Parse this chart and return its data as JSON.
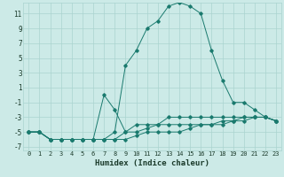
{
  "xlabel": "Humidex (Indice chaleur)",
  "background_color": "#cceae7",
  "grid_color": "#aad4d0",
  "line_color": "#1a7a6e",
  "xlim": [
    -0.5,
    23.5
  ],
  "ylim": [
    -7.5,
    12.5
  ],
  "yticks": [
    -7,
    -5,
    -3,
    -1,
    1,
    3,
    5,
    7,
    9,
    11
  ],
  "xticks": [
    0,
    1,
    2,
    3,
    4,
    5,
    6,
    7,
    8,
    9,
    10,
    11,
    12,
    13,
    14,
    15,
    16,
    17,
    18,
    19,
    20,
    21,
    22,
    23
  ],
  "series": [
    {
      "x": [
        0,
        1,
        2,
        3,
        4,
        5,
        6,
        7,
        8,
        9,
        10,
        11,
        12,
        13,
        14,
        15,
        16,
        17,
        18,
        19,
        20,
        21,
        22,
        23
      ],
      "y": [
        -5,
        -5,
        -6,
        -6,
        -6,
        -6,
        -6,
        -6,
        -5,
        4,
        6,
        9,
        10,
        12,
        12.5,
        12,
        11,
        6,
        2,
        -1,
        -1,
        -2,
        -3,
        -3.5
      ]
    },
    {
      "x": [
        0,
        1,
        2,
        3,
        4,
        5,
        6,
        7,
        8,
        9,
        10,
        11,
        12,
        13,
        14,
        15,
        16,
        17,
        18,
        19,
        20,
        21,
        22,
        23
      ],
      "y": [
        -5,
        -5,
        -6,
        -6,
        -6,
        -6,
        -6,
        0,
        -2,
        -5,
        -4,
        -4,
        -4,
        -3,
        -3,
        -3,
        -3,
        -3,
        -3,
        -3,
        -3,
        -3,
        -3,
        -3.5
      ]
    },
    {
      "x": [
        0,
        1,
        2,
        3,
        4,
        5,
        6,
        7,
        8,
        9,
        10,
        11,
        12,
        13,
        14,
        15,
        16,
        17,
        18,
        19,
        20,
        21,
        22,
        23
      ],
      "y": [
        -5,
        -5,
        -6,
        -6,
        -6,
        -6,
        -6,
        -6,
        -6,
        -5,
        -5,
        -4.5,
        -4,
        -4,
        -4,
        -4,
        -4,
        -4,
        -3.5,
        -3.5,
        -3,
        -3,
        -3,
        -3.5
      ]
    },
    {
      "x": [
        0,
        1,
        2,
        3,
        4,
        5,
        6,
        7,
        8,
        9,
        10,
        11,
        12,
        13,
        14,
        15,
        16,
        17,
        18,
        19,
        20,
        21,
        22,
        23
      ],
      "y": [
        -5,
        -5,
        -6,
        -6,
        -6,
        -6,
        -6,
        -6,
        -6,
        -6,
        -5.5,
        -5,
        -5,
        -5,
        -5,
        -4.5,
        -4,
        -4,
        -4,
        -3.5,
        -3.5,
        -3,
        -3,
        -3.5
      ]
    }
  ]
}
